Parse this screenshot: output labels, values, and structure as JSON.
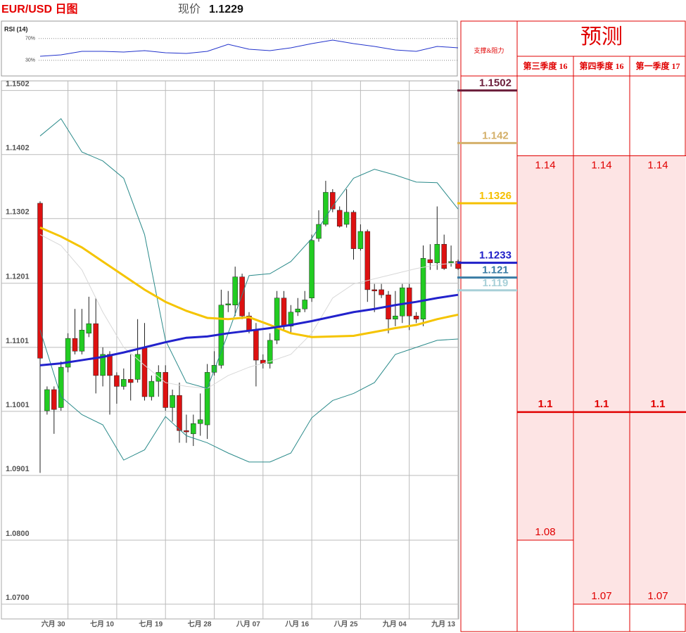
{
  "chart_data": [
    {
      "type": "candlestick",
      "title": "EUR/USD 日图",
      "categories": [
        null,
        null,
        null,
        null,
        "六月 30",
        null,
        null,
        null,
        null,
        null,
        null,
        "七月 10",
        null,
        null,
        null,
        null,
        null,
        null,
        "七月 19",
        null,
        null,
        null,
        null,
        null,
        null,
        "七月 28",
        null,
        null,
        null,
        null,
        null,
        null,
        "八月 07",
        null,
        null,
        null,
        null,
        null,
        null,
        "八月 16",
        null,
        null,
        null,
        null,
        null,
        null,
        "八月 25",
        null,
        null,
        null,
        null,
        null,
        null,
        "九月 04",
        null,
        null,
        null,
        null,
        null,
        null,
        "九月 13"
      ],
      "open": [
        1.1326,
        1.1002,
        1.1035,
        1.1007,
        1.107,
        1.1115,
        1.1095,
        1.1123,
        1.1138,
        1.1057,
        1.109,
        1.1057,
        1.104,
        1.1051,
        1.1051,
        1.1101,
        1.1024,
        1.1048,
        1.1062,
        1.1007,
        1.1026,
        1.0971,
        1.0966,
        1.0982,
        1.098,
        1.1062,
        1.1073,
        1.1167,
        1.1167,
        1.1211,
        1.115,
        1.1128,
        1.1081,
        1.1076,
        1.1112,
        1.1178,
        1.1134,
        1.1156,
        1.1161,
        1.1178,
        1.1271,
        1.1293,
        1.1343,
        1.1315,
        1.1293,
        1.1312,
        1.1255,
        1.1282,
        1.1191,
        1.1191,
        1.1183,
        1.1145,
        1.115,
        1.1194,
        1.115,
        1.1145,
        1.1238,
        1.1233,
        1.1262,
        1.1233,
        1.1235
      ],
      "high": [
        1.1329,
        1.104,
        1.104,
        1.1079,
        1.1123,
        1.1161,
        1.1161,
        1.118,
        1.1178,
        1.1101,
        1.1095,
        1.1062,
        1.1068,
        1.109,
        1.1145,
        1.1139,
        1.1057,
        1.1073,
        1.1073,
        1.1035,
        1.1046,
        1.0996,
        1.0996,
        1.1029,
        1.1075,
        1.1095,
        1.1191,
        1.1189,
        1.1227,
        1.1216,
        1.1156,
        1.1139,
        1.109,
        1.1123,
        1.1189,
        1.1189,
        1.1167,
        1.1178,
        1.1189,
        1.1277,
        1.1315,
        1.1361,
        1.1348,
        1.1321,
        1.1348,
        1.1315,
        1.1293,
        1.1285,
        1.12,
        1.12,
        1.1189,
        1.1189,
        1.12,
        1.12,
        1.1156,
        1.126,
        1.1262,
        1.1321,
        1.1277,
        1.126,
        1.1238
      ],
      "low": [
        1.0905,
        1.0996,
        1.0966,
        1.1002,
        1.1062,
        1.109,
        1.109,
        1.1117,
        1.1029,
        1.104,
        1.0996,
        1.1013,
        1.1035,
        1.1018,
        1.1046,
        1.1018,
        1.1018,
        1.1024,
        1.1002,
        1.0985,
        1.0952,
        1.0952,
        1.0947,
        1.0963,
        1.0958,
        1.1057,
        1.1068,
        1.1156,
        1.115,
        1.1145,
        1.1123,
        1.104,
        1.1068,
        1.1068,
        1.1106,
        1.1128,
        1.1123,
        1.115,
        1.1156,
        1.1172,
        1.1266,
        1.129,
        1.1312,
        1.1288,
        1.1288,
        1.1238,
        1.1252,
        1.1172,
        1.1156,
        1.1178,
        1.1123,
        1.1134,
        1.1139,
        1.1128,
        1.1139,
        1.1134,
        1.1222,
        1.1222,
        1.1222,
        1.1227,
        1.1222
      ],
      "close": [
        1.1084,
        1.1035,
        1.1004,
        1.107,
        1.1115,
        1.1095,
        1.1128,
        1.1138,
        1.1057,
        1.109,
        1.1057,
        1.104,
        1.1051,
        1.1046,
        1.109,
        1.1024,
        1.1048,
        1.1062,
        1.1007,
        1.1026,
        1.0971,
        1.0969,
        1.0982,
        1.0988,
        1.1062,
        1.1073,
        1.1167,
        1.1169,
        1.1211,
        1.115,
        1.1128,
        1.1081,
        1.1076,
        1.1112,
        1.1178,
        1.1134,
        1.1156,
        1.1161,
        1.1175,
        1.1268,
        1.1293,
        1.1343,
        1.1317,
        1.129,
        1.1312,
        1.1255,
        1.1282,
        1.1191,
        1.1189,
        1.1183,
        1.1145,
        1.115,
        1.1194,
        1.115,
        1.1145,
        1.124,
        1.1233,
        1.1262,
        1.1224,
        1.1235,
        1.1224
      ],
      "up_color": "#22cc22",
      "down_color": "#dd1111",
      "overlay_x": [
        0,
        3,
        6,
        9,
        12,
        15,
        18,
        21,
        24,
        27,
        30,
        33,
        36,
        39,
        42,
        45,
        48,
        51,
        54,
        57,
        60
      ],
      "overlays": [
        {
          "color": "#d8d8d8",
          "width": 1,
          "values": [
            1.1277,
            1.126,
            1.1222,
            1.1156,
            1.1101,
            1.1073,
            1.1046,
            1.104,
            1.1037,
            1.1057,
            1.107,
            1.1079,
            1.109,
            1.1123,
            1.1178,
            1.12,
            1.1208,
            1.1216,
            1.1224,
            1.123,
            1.1233
          ]
        },
        {
          "color": "#2a8a8a",
          "width": 1,
          "values": [
            1.1431,
            1.1458,
            1.1406,
            1.1392,
            1.1365,
            1.1277,
            1.1112,
            1.1046,
            1.1037,
            1.1123,
            1.1213,
            1.1216,
            1.1235,
            1.1271,
            1.1321,
            1.1365,
            1.1379,
            1.137,
            1.1359,
            1.1358,
            1.1317
          ]
        },
        {
          "color": "#2a8a8a",
          "width": 1,
          "values": [
            1.1128,
            1.1024,
            1.0996,
            1.098,
            1.0925,
            1.0941,
            1.0993,
            1.0963,
            1.0952,
            1.0936,
            1.0922,
            1.0922,
            1.0936,
            1.0991,
            1.1018,
            1.1029,
            1.1046,
            1.109,
            1.1101,
            1.1112,
            1.1114
          ]
        },
        {
          "color": "#f5c400",
          "width": 3,
          "values": [
            1.1288,
            1.1274,
            1.1257,
            1.1235,
            1.1213,
            1.1191,
            1.1172,
            1.1158,
            1.1147,
            1.1145,
            1.1148,
            1.1136,
            1.1123,
            1.1117,
            1.1118,
            1.1119,
            1.1125,
            1.1131,
            1.1136,
            1.1145,
            1.1152
          ]
        },
        {
          "color": "#2222cc",
          "width": 3,
          "values": [
            1.1073,
            1.1076,
            1.1081,
            1.1086,
            1.1093,
            1.1101,
            1.1109,
            1.1116,
            1.1118,
            1.1123,
            1.1127,
            1.1131,
            1.1136,
            1.1142,
            1.1149,
            1.1156,
            1.1161,
            1.1167,
            1.1172,
            1.1178,
            1.1183
          ]
        }
      ],
      "ylim": [
        1.0677,
        1.1517
      ],
      "yticks": [
        1.1502,
        1.1402,
        1.1302,
        1.1201,
        1.1101,
        1.1001,
        1.0901,
        {
          "value": 1.08,
          "label": "1.0800"
        },
        {
          "value": 1.07,
          "label": "1.0700"
        }
      ],
      "grid": true
    },
    {
      "type": "line",
      "title": "RSI (14)",
      "x": [
        0,
        3,
        6,
        9,
        12,
        15,
        18,
        21,
        24,
        27,
        30,
        33,
        36,
        39,
        42,
        45,
        48,
        51,
        54,
        57,
        60
      ],
      "values": [
        37.4,
        40.0,
        46.5,
        46.5,
        45.2,
        47.7,
        43.9,
        42.6,
        46.5,
        59.4,
        50.3,
        47.7,
        52.9,
        60.6,
        67.1,
        60.6,
        55.5,
        49.0,
        46.5,
        55.5,
        52.9
      ],
      "color": "#2233cc",
      "xlim": [
        0,
        60
      ],
      "ylim": [
        0,
        100
      ],
      "yticks": [
        {
          "value": 30,
          "label": "30%"
        },
        {
          "value": 70,
          "label": "70%"
        }
      ]
    }
  ],
  "current_price": {
    "label": "现价",
    "value": 1.1229
  },
  "forecast": {
    "title": "预测",
    "levels_header": "支撑&阻力",
    "levels": [
      {
        "value": 1.1502,
        "color": "#6b1d3a"
      },
      {
        "value": 1.142,
        "color": "#d4b06a"
      },
      {
        "value": 1.1326,
        "color": "#f5c000"
      },
      {
        "value": 1.1233,
        "color": "#1f1fc8"
      },
      {
        "value": 1.121,
        "color": "#3a7ca5"
      },
      {
        "value": 1.119,
        "color": "#a8d0d8"
      }
    ],
    "quarters": [
      {
        "name": "第三季度 16",
        "values": [
          1.14,
          1.1,
          1.08
        ]
      },
      {
        "name": "第四季度 16",
        "values": [
          1.14,
          1.1,
          1.07
        ]
      },
      {
        "name": "第一季度 17",
        "values": [
          1.14,
          1.1,
          1.07
        ]
      }
    ]
  }
}
